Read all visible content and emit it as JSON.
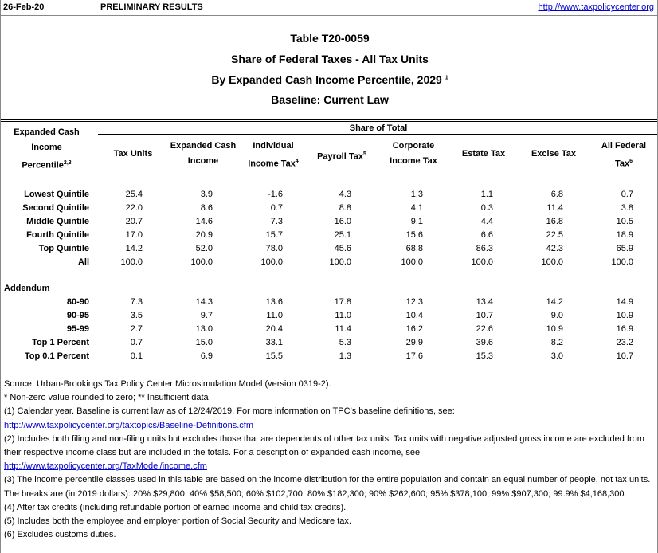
{
  "header": {
    "date": "26-Feb-20",
    "status": "PRELIMINARY RESULTS",
    "link": "http://www.taxpolicycenter.org"
  },
  "title": {
    "table_id": "Table T20-0059",
    "line2": "Share of Federal Taxes - All Tax Units",
    "line3": "By Expanded Cash Income Percentile, 2029",
    "line3_sup": "1",
    "line4": "Baseline: Current Law"
  },
  "columns": {
    "row_header_l1": "Expanded Cash",
    "row_header_l2": "Income",
    "row_header_l3": "Percentile",
    "row_header_sup": "2,3",
    "group": "Share of Total",
    "cols": [
      {
        "l1": "",
        "l2": "Tax Units",
        "sup": ""
      },
      {
        "l1": "Expanded Cash",
        "l2": "Income",
        "sup": ""
      },
      {
        "l1": "Individual",
        "l2": "Income Tax",
        "sup": "4"
      },
      {
        "l1": "",
        "l2": "Payroll Tax",
        "sup": "5"
      },
      {
        "l1": "Corporate",
        "l2": "Income Tax",
        "sup": ""
      },
      {
        "l1": "",
        "l2": "Estate Tax",
        "sup": ""
      },
      {
        "l1": "",
        "l2": "Excise Tax",
        "sup": ""
      },
      {
        "l1": "All Federal",
        "l2": "Tax",
        "sup": "6"
      }
    ]
  },
  "rows": [
    {
      "label": "Lowest Quintile",
      "values": [
        "25.4",
        "3.9",
        "-1.6",
        "4.3",
        "1.3",
        "1.1",
        "6.8",
        "0.7"
      ]
    },
    {
      "label": "Second Quintile",
      "values": [
        "22.0",
        "8.6",
        "0.7",
        "8.8",
        "4.1",
        "0.3",
        "11.4",
        "3.8"
      ]
    },
    {
      "label": "Middle Quintile",
      "values": [
        "20.7",
        "14.6",
        "7.3",
        "16.0",
        "9.1",
        "4.4",
        "16.8",
        "10.5"
      ]
    },
    {
      "label": "Fourth Quintile",
      "values": [
        "17.0",
        "20.9",
        "15.7",
        "25.1",
        "15.6",
        "6.6",
        "22.5",
        "18.9"
      ]
    },
    {
      "label": "Top Quintile",
      "values": [
        "14.2",
        "52.0",
        "78.0",
        "45.6",
        "68.8",
        "86.3",
        "42.3",
        "65.9"
      ]
    },
    {
      "label": "All",
      "values": [
        "100.0",
        "100.0",
        "100.0",
        "100.0",
        "100.0",
        "100.0",
        "100.0",
        "100.0"
      ]
    }
  ],
  "addendum_label": "Addendum",
  "addendum": [
    {
      "label": "80-90",
      "values": [
        "7.3",
        "14.3",
        "13.6",
        "17.8",
        "12.3",
        "13.4",
        "14.2",
        "14.9"
      ]
    },
    {
      "label": "90-95",
      "values": [
        "3.5",
        "9.7",
        "11.0",
        "11.0",
        "10.4",
        "10.7",
        "9.0",
        "10.9"
      ]
    },
    {
      "label": "95-99",
      "values": [
        "2.7",
        "13.0",
        "20.4",
        "11.4",
        "16.2",
        "22.6",
        "10.9",
        "16.9"
      ]
    },
    {
      "label": "Top 1 Percent",
      "values": [
        "0.7",
        "15.0",
        "33.1",
        "5.3",
        "29.9",
        "39.6",
        "8.2",
        "23.2"
      ]
    },
    {
      "label": "Top 0.1 Percent",
      "values": [
        "0.1",
        "6.9",
        "15.5",
        "1.3",
        "17.6",
        "15.3",
        "3.0",
        "10.7"
      ]
    }
  ],
  "notes": {
    "source": "Source: Urban-Brookings Tax Policy Center Microsimulation Model (version 0319-2).",
    "nonzero": "* Non-zero value rounded to zero; ** Insufficient data",
    "n1": "(1) Calendar year. Baseline is current law as of 12/24/2019. For more information on TPC’s baseline definitions, see:",
    "n1_link": "http://www.taxpolicycenter.org/taxtopics/Baseline-Definitions.cfm",
    "n2": "(2) Includes both filing and non-filing units but excludes those that are dependents of other tax units. Tax units with negative adjusted gross income are excluded from their respective income class but are included in the totals. For a description of expanded cash income, see",
    "n2_link": "http://www.taxpolicycenter.org/TaxModel/income.cfm",
    "n3": "(3) The income percentile classes used in this table are based on the income distribution for the entire population and contain an equal number of people, not tax units. The breaks are (in 2019 dollars): 20% $29,800; 40% $58,500; 60% $102,700; 80% $182,300; 90% $262,600; 95% $378,100; 99% $907,300; 99.9% $4,168,300.",
    "n4": "(4) After tax credits (including refundable portion of earned income and child tax credits).",
    "n5": "(5) Includes both the employee and employer portion of Social Security and Medicare tax.",
    "n6": "(6) Excludes customs duties."
  }
}
